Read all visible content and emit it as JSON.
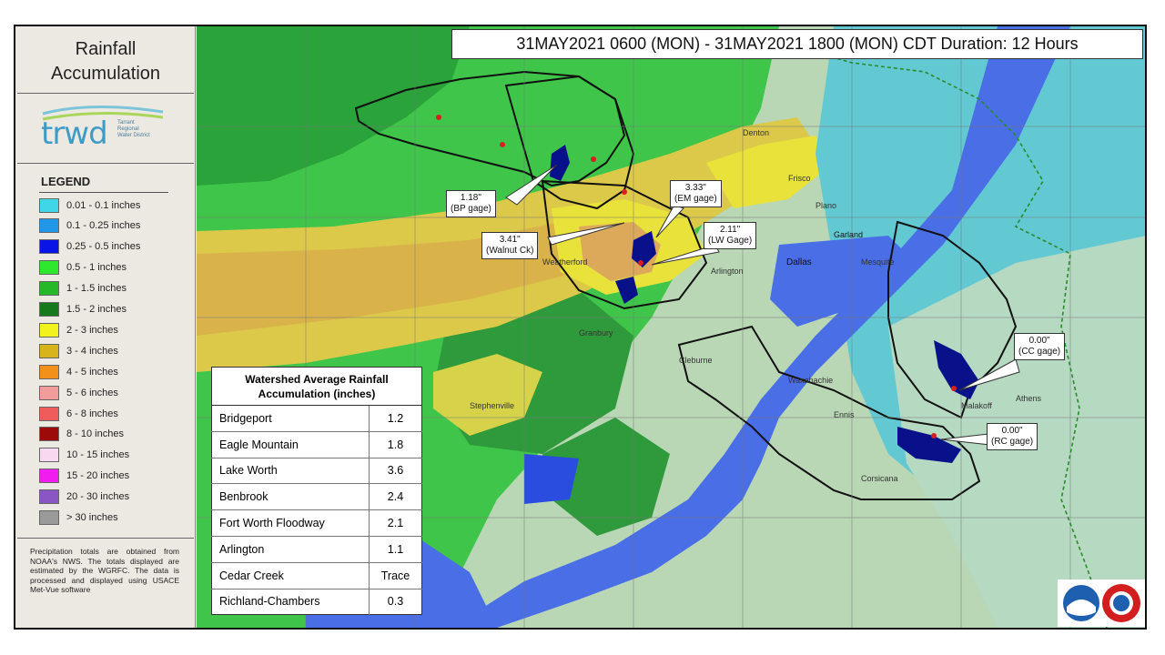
{
  "sidebar": {
    "title_line1": "Rainfall",
    "title_line2": "Accumulation",
    "logo_text": "trwd",
    "logo_subtext": "Tarrant Regional Water District",
    "legend_title": "LEGEND",
    "legend": [
      {
        "label": "0.01 - 0.1 inches",
        "color": "#3fd6e8"
      },
      {
        "label": "0.1 - 0.25 inches",
        "color": "#2296e8"
      },
      {
        "label": "0.25 - 0.5 inches",
        "color": "#0a14e6"
      },
      {
        "label": "0.5 - 1 inches",
        "color": "#2ee82e"
      },
      {
        "label": "1 - 1.5 inches",
        "color": "#27b82a"
      },
      {
        "label": "1.5 - 2 inches",
        "color": "#167a1c"
      },
      {
        "label": "2 - 3 inches",
        "color": "#f2f21e"
      },
      {
        "label": "3 - 4 inches",
        "color": "#d8b41c"
      },
      {
        "label": "4 - 5 inches",
        "color": "#f2901c"
      },
      {
        "label": "5 - 6 inches",
        "color": "#f29c9c"
      },
      {
        "label": "6 - 8 inches",
        "color": "#ee5c5c"
      },
      {
        "label": "8 - 10 inches",
        "color": "#9c0a0a"
      },
      {
        "label": "10 - 15 inches",
        "color": "#f8d8f0"
      },
      {
        "label": "15 - 20 inches",
        "color": "#f01cf0"
      },
      {
        "label": "20 - 30 inches",
        "color": "#8a56c4"
      },
      {
        "label": "> 30 inches",
        "color": "#9a9a9a"
      }
    ],
    "note": "Precipitation totals are obtained from NOAA's NWS. The totals displayed are estimated by the WGRFC. The data is processed and displayed using USACE Met-Vue software"
  },
  "map": {
    "date_range": "31MAY2021 0600 (MON) - 31MAY2021 1800 (MON) CDT Duration: 12 Hours",
    "gage_callouts": [
      {
        "value": "1.18\"",
        "name": "(BP gage)"
      },
      {
        "value": "3.33\"",
        "name": "(EM gage)"
      },
      {
        "value": "3.41\"",
        "name": "(Walnut Ck)"
      },
      {
        "value": "2.11\"",
        "name": "(LW Gage)"
      },
      {
        "value": "0.00\"",
        "name": "(CC gage)"
      },
      {
        "value": "0.00\"",
        "name": "(RC gage)"
      }
    ],
    "place_labels": [
      "Dallas",
      "Garland",
      "Plano",
      "Frisco",
      "Mesquite",
      "Arlington",
      "Waxahachie",
      "Corsicana",
      "Weatherford",
      "Stephenville",
      "Granbury",
      "Cleburne",
      "Denton",
      "Ennis",
      "Malakoff",
      "Athens"
    ]
  },
  "watershed_table": {
    "header": "Watershed Average Rainfall Accumulation (inches)",
    "rows": [
      {
        "name": "Bridgeport",
        "value": "1.2"
      },
      {
        "name": "Eagle Mountain",
        "value": "1.8"
      },
      {
        "name": "Lake Worth",
        "value": "3.6"
      },
      {
        "name": "Benbrook",
        "value": "2.4"
      },
      {
        "name": "Fort Worth  Floodway",
        "value": "2.1"
      },
      {
        "name": "Arlington",
        "value": "1.1"
      },
      {
        "name": "Cedar Creek",
        "value": "Trace"
      },
      {
        "name": "Richland-Chambers",
        "value": "0.3"
      }
    ]
  },
  "agency_logos": [
    "noaa-logo",
    "national-weather-service-logo"
  ]
}
